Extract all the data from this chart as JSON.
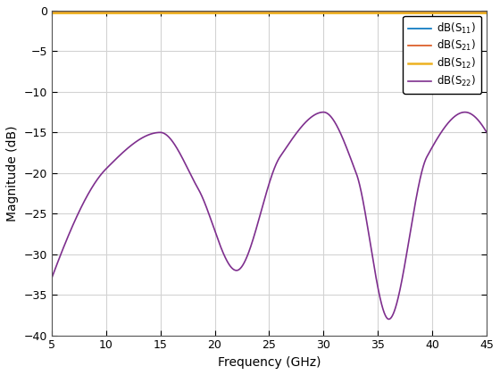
{
  "title": "",
  "xlabel": "Frequency (GHz)",
  "ylabel": "Magnitude (dB)",
  "xlim": [
    5,
    45
  ],
  "ylim": [
    -40,
    0
  ],
  "xticks": [
    5,
    10,
    15,
    20,
    25,
    30,
    35,
    40,
    45
  ],
  "yticks": [
    0,
    -5,
    -10,
    -15,
    -20,
    -25,
    -30,
    -35,
    -40
  ],
  "freq_start": 5,
  "freq_end": 45,
  "s11_color": "#0072BD",
  "s21_color": "#D95319",
  "s12_color": "#EDB120",
  "s22_color": "#7E2F8E",
  "legend_labels": [
    "dB(S_{11})",
    "dB(S_{21})",
    "dB(S_{12})",
    "dB(S_{22})"
  ],
  "background_color": "#FFFFFF",
  "grid_color": "#D3D3D3",
  "s11_value": -0.1,
  "s21_value": -0.1,
  "s12_value": -0.3,
  "s22_keypoints_f": [
    5,
    10,
    15,
    22,
    30,
    36,
    43,
    45
  ],
  "s22_keypoints_v": [
    -33,
    -19,
    -15,
    -32,
    -12.5,
    -38,
    -12.5,
    -15
  ]
}
